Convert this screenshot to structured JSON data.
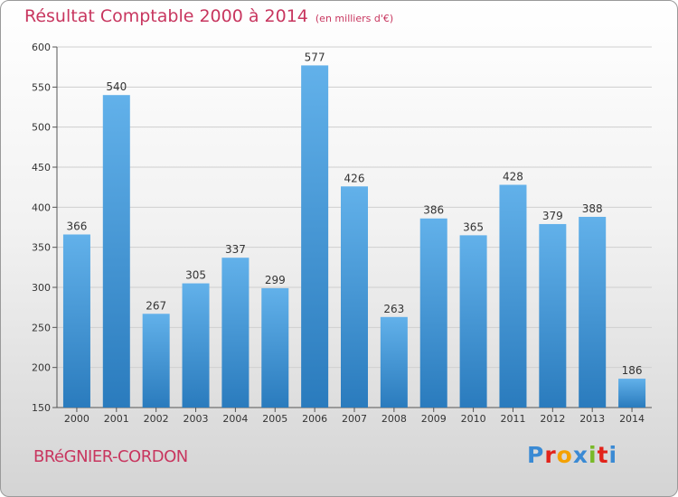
{
  "chart_data": {
    "type": "bar",
    "title": "Résultat Comptable 2000 à 2014",
    "unit_note": "(en milliers d'€)",
    "categories": [
      "2000",
      "2001",
      "2002",
      "2003",
      "2004",
      "2005",
      "2006",
      "2007",
      "2008",
      "2009",
      "2010",
      "2011",
      "2012",
      "2013",
      "2014"
    ],
    "values": [
      366,
      540,
      267,
      305,
      337,
      299,
      577,
      426,
      263,
      386,
      365,
      428,
      379,
      388,
      186
    ],
    "ylim": [
      150,
      600
    ],
    "yticks": [
      150,
      200,
      250,
      300,
      350,
      400,
      450,
      500,
      550,
      600
    ],
    "xlabel": "",
    "ylabel": "",
    "grid": true
  },
  "footer": {
    "location": "BRéGNIER-CORDON",
    "brand": "Proxiti"
  },
  "colors": {
    "title": "#c8365f",
    "bar_top": "#62b1ea",
    "bar_bottom": "#2a7bbd",
    "brand_letters": [
      "#3a8ad4",
      "#e2231a",
      "#f4a100",
      "#3a8ad4",
      "#79b928",
      "#e2231a",
      "#3a8ad4"
    ]
  }
}
